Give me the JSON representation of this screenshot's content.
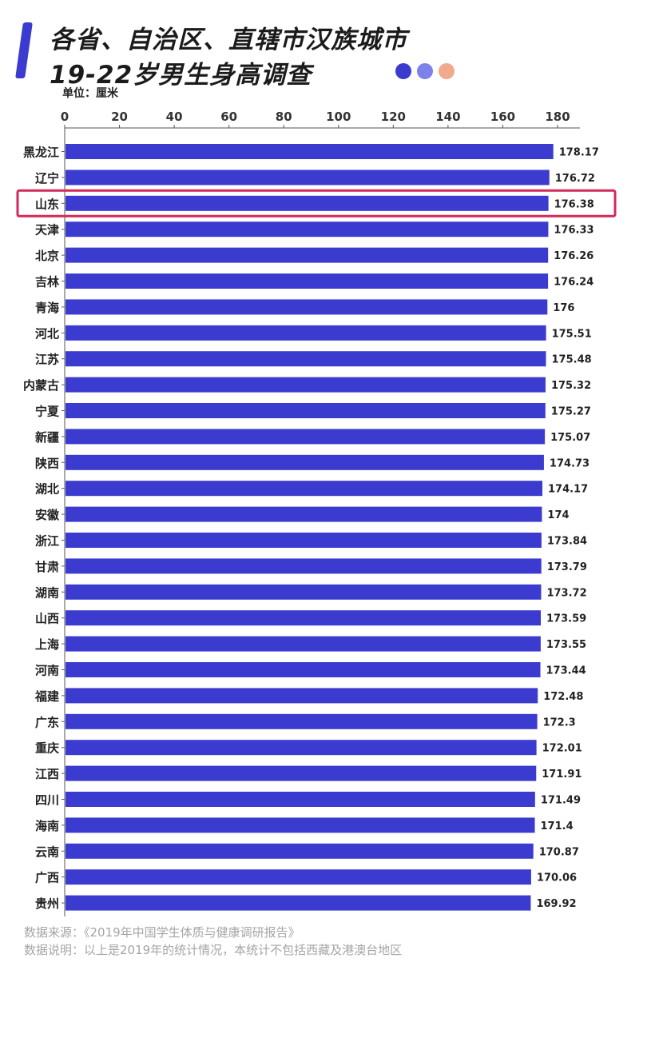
{
  "header": {
    "title_line1": "各省、自治区、直辖市汉族城市",
    "title_line2": "19-22岁男生身高调查",
    "dots": [
      "#3b3ccf",
      "#7b82ea",
      "#f2a98c"
    ],
    "accent_color": "#3b3ccf",
    "unit_label": "单位：厘米"
  },
  "chart_data": {
    "type": "bar",
    "orientation": "horizontal",
    "title": "各省、自治区、直辖市汉族城市19-22岁男生身高调查",
    "unit": "厘米",
    "xlim": [
      0,
      180
    ],
    "x_ticks": [
      0,
      20,
      40,
      60,
      80,
      100,
      120,
      140,
      160,
      180
    ],
    "grid": false,
    "bar_color": "#3b3ccf",
    "highlight": {
      "category": "山东",
      "color": "#d42a5a"
    },
    "categories": [
      "黑龙江",
      "辽宁",
      "山东",
      "天津",
      "北京",
      "吉林",
      "青海",
      "河北",
      "江苏",
      "内蒙古",
      "宁夏",
      "新疆",
      "陕西",
      "湖北",
      "安徽",
      "浙江",
      "甘肃",
      "湖南",
      "山西",
      "上海",
      "河南",
      "福建",
      "广东",
      "重庆",
      "江西",
      "四川",
      "海南",
      "云南",
      "广西",
      "贵州"
    ],
    "values": [
      178.17,
      176.72,
      176.38,
      176.33,
      176.26,
      176.24,
      176,
      175.51,
      175.48,
      175.32,
      175.27,
      175.07,
      174.73,
      174.17,
      174,
      173.84,
      173.79,
      173.72,
      173.59,
      173.55,
      173.44,
      172.48,
      172.3,
      172.01,
      171.91,
      171.49,
      171.4,
      170.87,
      170.06,
      169.92
    ],
    "value_labels": [
      "178.17",
      "176.72",
      "176.38",
      "176.33",
      "176.26",
      "176.24",
      "176",
      "175.51",
      "175.48",
      "175.32",
      "175.27",
      "175.07",
      "174.73",
      "174.17",
      "174",
      "173.84",
      "173.79",
      "173.72",
      "173.59",
      "173.55",
      "173.44",
      "172.48",
      "172.3",
      "172.01",
      "171.91",
      "171.49",
      "171.4",
      "170.87",
      "170.06",
      "169.92"
    ]
  },
  "footer": {
    "source": "数据来源：《2019年中国学生体质与健康调研报告》",
    "note": "数据说明：以上是2019年的统计情况，本统计不包括西藏及港澳台地区"
  }
}
